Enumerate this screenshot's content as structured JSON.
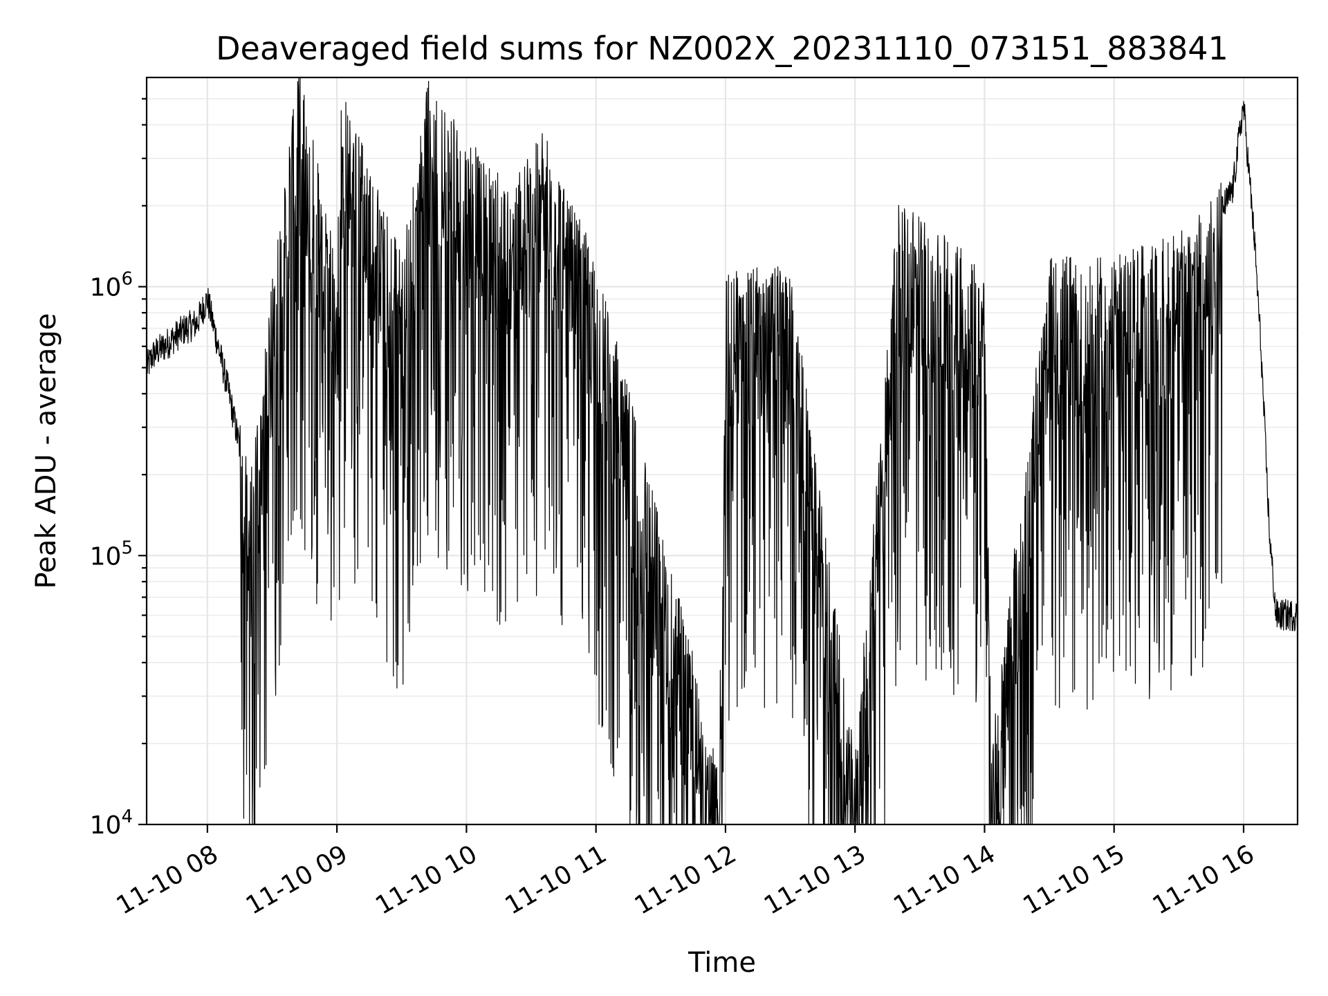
{
  "chart_data": {
    "type": "line",
    "title": "Deaveraged field sums for NZ002X_20231110_073151_883841",
    "xlabel": "Time",
    "ylabel": "Peak ADU - average",
    "yscale": "log",
    "xlim": [
      "2023-11-10T07:31:51",
      "2023-11-10T16:25:00"
    ],
    "ylim": [
      10000,
      6000000
    ],
    "grid": true,
    "x_ticks": [
      "2023-11-10T08:00",
      "2023-11-10T09:00",
      "2023-11-10T10:00",
      "2023-11-10T11:00",
      "2023-11-10T12:00",
      "2023-11-10T13:00",
      "2023-11-10T14:00",
      "2023-11-10T15:00",
      "2023-11-10T16:00"
    ],
    "x_tick_labels": [
      "11-10 08",
      "11-10 09",
      "11-10 10",
      "11-10 11",
      "11-10 12",
      "11-10 13",
      "11-10 14",
      "11-10 15",
      "11-10 16"
    ],
    "y_ticks": [
      10000,
      100000,
      1000000
    ],
    "y_tick_labels": [
      {
        "base": "10",
        "exp": "4"
      },
      {
        "base": "10",
        "exp": "5"
      },
      {
        "base": "10",
        "exp": "6"
      }
    ],
    "series": [
      {
        "color": "#000000",
        "points": [
          [
            "2023-11-10T07:32",
            500000
          ],
          [
            "2023-11-10T07:35",
            560000
          ],
          [
            "2023-11-10T07:40",
            600000
          ],
          [
            "2023-11-10T07:45",
            650000
          ],
          [
            "2023-11-10T07:50",
            700000
          ],
          [
            "2023-11-10T07:55",
            730000
          ],
          [
            "2023-11-10T08:00",
            900000
          ],
          [
            "2023-11-10T08:05",
            600000
          ],
          [
            "2023-11-10T08:10",
            400000
          ],
          [
            "2023-11-10T08:15",
            250000
          ],
          [
            "2023-11-10T08:20",
            150000
          ],
          [
            "2023-11-10T08:30",
            800000
          ],
          [
            "2023-11-10T08:42",
            5200000
          ],
          [
            "2023-11-10T09:00",
            1000000
          ],
          [
            "2023-11-10T09:02",
            4300000
          ],
          [
            "2023-11-10T09:30",
            1000000
          ],
          [
            "2023-11-10T09:42",
            4500000
          ],
          [
            "2023-11-10T09:55",
            3100000
          ],
          [
            "2023-11-10T10:20",
            1800000
          ],
          [
            "2023-11-10T10:36",
            2900000
          ],
          [
            "2023-11-10T11:00",
            1000000
          ],
          [
            "2023-11-10T11:57",
            13000
          ],
          [
            "2023-11-10T12:00",
            900000
          ],
          [
            "2023-11-10T12:30",
            900000
          ],
          [
            "2023-11-10T13:00",
            14000
          ],
          [
            "2023-11-10T13:20",
            1600000
          ],
          [
            "2023-11-10T14:00",
            900000
          ],
          [
            "2023-11-10T14:03",
            15000
          ],
          [
            "2023-11-10T14:30",
            1000000
          ],
          [
            "2023-11-10T15:00",
            1000000
          ],
          [
            "2023-11-10T15:30",
            1200000
          ],
          [
            "2023-11-10T15:45",
            1600000
          ],
          [
            "2023-11-10T15:55",
            2300000
          ],
          [
            "2023-11-10T15:59",
            4200000
          ],
          [
            "2023-11-10T16:00",
            4700000
          ],
          [
            "2023-11-10T16:05",
            1500000
          ],
          [
            "2023-11-10T16:08",
            600000
          ],
          [
            "2023-11-10T16:12",
            120000
          ],
          [
            "2023-11-10T16:15",
            60000
          ],
          [
            "2023-11-10T16:20",
            60000
          ],
          [
            "2023-11-10T16:25",
            60000
          ]
        ]
      }
    ]
  }
}
